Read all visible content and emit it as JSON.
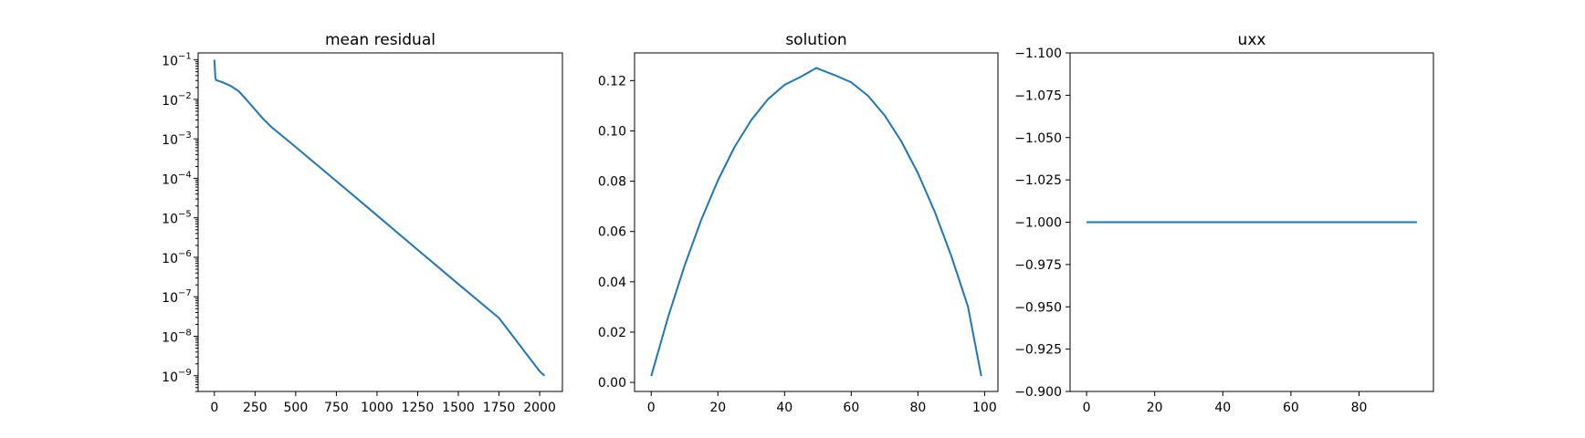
{
  "colors": {
    "line": "#1f77b4",
    "axes": "#000000",
    "background": "#ffffff"
  },
  "chart_data": [
    {
      "type": "line",
      "title": "mean residual",
      "xlabel": "",
      "ylabel": "",
      "yscale": "log",
      "grid": false,
      "xlim": [
        -100,
        2140
      ],
      "ylim": [
        4e-10,
        0.15
      ],
      "xticks": [
        0,
        250,
        500,
        750,
        1000,
        1250,
        1500,
        1750,
        2000
      ],
      "xtick_labels": [
        "0",
        "250",
        "500",
        "750",
        "1000",
        "1250",
        "1500",
        "1750",
        "2000"
      ],
      "yticks": [
        1e-09,
        1e-08,
        1e-07,
        1e-06,
        1e-05,
        0.0001,
        0.001,
        0.01,
        0.1
      ],
      "ytick_labels": [
        {
          "base": "10",
          "exp": "−9"
        },
        {
          "base": "10",
          "exp": "−8"
        },
        {
          "base": "10",
          "exp": "−7"
        },
        {
          "base": "10",
          "exp": "−6"
        },
        {
          "base": "10",
          "exp": "−5"
        },
        {
          "base": "10",
          "exp": "−4"
        },
        {
          "base": "10",
          "exp": "−3"
        },
        {
          "base": "10",
          "exp": "−2"
        },
        {
          "base": "10",
          "exp": "−1"
        }
      ],
      "series": [
        {
          "x": [
            0,
            3,
            6,
            10,
            50,
            100,
            150,
            200,
            250,
            300,
            350,
            500,
            750,
            1000,
            1250,
            1500,
            1750,
            2000,
            2030
          ],
          "y": [
            0.1,
            0.06,
            0.035,
            0.031,
            0.027,
            0.022,
            0.016,
            0.0095,
            0.0055,
            0.0032,
            0.002,
            0.00062,
            8.5e-05,
            1.15e-05,
            1.55e-06,
            2.1e-07,
            2.9e-08,
            1.3e-09,
            1e-09
          ]
        }
      ]
    },
    {
      "type": "line",
      "title": "solution",
      "xlabel": "",
      "ylabel": "",
      "grid": false,
      "xlim": [
        -5,
        104
      ],
      "ylim": [
        -0.0036,
        0.131
      ],
      "xticks": [
        0,
        20,
        40,
        60,
        80,
        100
      ],
      "xtick_labels": [
        "0",
        "20",
        "40",
        "60",
        "80",
        "100"
      ],
      "yticks": [
        0.0,
        0.02,
        0.04,
        0.06,
        0.08,
        0.1,
        0.12
      ],
      "ytick_labels": [
        "0.00",
        "0.02",
        "0.04",
        "0.06",
        "0.08",
        "0.10",
        "0.12"
      ],
      "series": [
        {
          "function": "x*(99-x)/(2*98.5^2)*... parabola",
          "x": [
            0,
            5,
            10,
            15,
            20,
            25,
            30,
            35,
            40,
            45,
            49.5,
            55,
            60,
            65,
            70,
            75,
            80,
            85,
            90,
            95,
            99
          ],
          "y": [
            0.0025,
            0.0257,
            0.0464,
            0.0646,
            0.0803,
            0.0936,
            0.1043,
            0.1126,
            0.1183,
            0.1216,
            0.125,
            0.1222,
            0.1193,
            0.114,
            0.1062,
            0.0959,
            0.0832,
            0.068,
            0.0503,
            0.0302,
            0.0025
          ]
        }
      ]
    },
    {
      "type": "line",
      "title": "uxx",
      "xlabel": "",
      "ylabel": "",
      "grid": false,
      "xlim": [
        -4.85,
        101.85
      ],
      "ylim": [
        -1.1,
        -0.9
      ],
      "xticks": [
        0,
        20,
        40,
        60,
        80
      ],
      "xtick_labels": [
        "0",
        "20",
        "40",
        "60",
        "80"
      ],
      "yticks": [
        -1.1,
        -1.075,
        -1.05,
        -1.025,
        -1.0,
        -0.975,
        -0.95,
        -0.925,
        -0.9
      ],
      "ytick_labels": [
        "−1.100",
        "−1.075",
        "−1.050",
        "−1.025",
        "−1.000",
        "−0.975",
        "−0.950",
        "−0.925",
        "−0.900"
      ],
      "inverted_y": true,
      "series": [
        {
          "x": [
            0,
            97
          ],
          "y": [
            -1.0,
            -1.0
          ]
        }
      ]
    }
  ]
}
